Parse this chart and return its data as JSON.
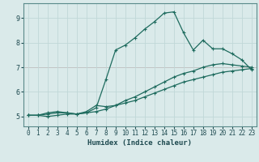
{
  "xlabel": "Humidex (Indice chaleur)",
  "bg_color": "#daeaea",
  "grid_color": "#c0d8d8",
  "line_color": "#1e6b5e",
  "red_line_color": "#d06060",
  "xlim": [
    -0.5,
    23.5
  ],
  "ylim": [
    4.6,
    9.6
  ],
  "xticks": [
    0,
    1,
    2,
    3,
    4,
    5,
    6,
    7,
    8,
    9,
    10,
    11,
    12,
    13,
    14,
    15,
    16,
    17,
    18,
    19,
    20,
    21,
    22,
    23
  ],
  "yticks": [
    5,
    6,
    7,
    8,
    9
  ],
  "series1_x": [
    0,
    1,
    2,
    3,
    4,
    5,
    6,
    7,
    8,
    9,
    10,
    11,
    12,
    13,
    14,
    15,
    16,
    17,
    18,
    19,
    20,
    21,
    22,
    23
  ],
  "series1_y": [
    5.05,
    5.05,
    5.15,
    5.2,
    5.15,
    5.1,
    5.15,
    5.35,
    6.5,
    7.7,
    7.9,
    8.2,
    8.55,
    8.85,
    9.2,
    9.25,
    8.4,
    7.7,
    8.1,
    7.75,
    7.75,
    7.55,
    7.3,
    6.9
  ],
  "series2_x": [
    0,
    1,
    2,
    3,
    4,
    5,
    6,
    7,
    8,
    9,
    10,
    11,
    12,
    13,
    14,
    15,
    16,
    17,
    18,
    19,
    20,
    21,
    22,
    23
  ],
  "series2_y": [
    5.05,
    5.05,
    5.1,
    5.15,
    5.15,
    5.1,
    5.2,
    5.45,
    5.4,
    5.45,
    5.65,
    5.8,
    6.0,
    6.2,
    6.4,
    6.6,
    6.75,
    6.85,
    7.0,
    7.1,
    7.15,
    7.1,
    7.05,
    7.0
  ],
  "series3_x": [
    0,
    1,
    2,
    3,
    4,
    5,
    6,
    7,
    8,
    9,
    10,
    11,
    12,
    13,
    14,
    15,
    16,
    17,
    18,
    19,
    20,
    21,
    22,
    23
  ],
  "series3_y": [
    5.05,
    5.05,
    5.0,
    5.05,
    5.1,
    5.1,
    5.15,
    5.2,
    5.3,
    5.45,
    5.55,
    5.65,
    5.8,
    5.95,
    6.1,
    6.25,
    6.4,
    6.5,
    6.6,
    6.7,
    6.8,
    6.85,
    6.9,
    6.95
  ]
}
